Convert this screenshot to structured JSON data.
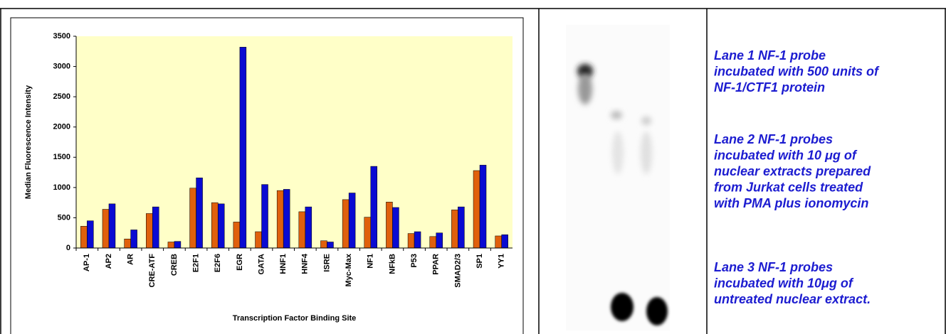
{
  "chart_data": {
    "type": "bar",
    "xlabel": "Transcription Factor Binding Site",
    "ylabel": "Median Fluorescence Intensity",
    "categories": [
      "AP-1",
      "AP2",
      "AR",
      "CRE-ATF",
      "CREB",
      "E2F1",
      "E2F6",
      "EGR",
      "GATA",
      "HNF1",
      "HNF4",
      "ISRE",
      "Myc-Max",
      "NF1",
      "NFkB",
      "P53",
      "PPAR",
      "SMAD2/3",
      "SP1",
      "YY1"
    ],
    "series": [
      {
        "color": "#e0600c",
        "values": [
          360,
          640,
          150,
          570,
          100,
          990,
          750,
          430,
          270,
          950,
          600,
          120,
          800,
          510,
          760,
          240,
          190,
          630,
          1280,
          200
        ]
      },
      {
        "color": "#0a0ad2",
        "values": [
          450,
          730,
          300,
          680,
          110,
          1160,
          730,
          3320,
          1050,
          970,
          680,
          100,
          910,
          1350,
          670,
          270,
          250,
          680,
          1370,
          220
        ]
      }
    ],
    "ylim": [
      0,
      3500
    ],
    "yticks": [
      0,
      500,
      1000,
      1500,
      2000,
      2500,
      3000,
      3500
    ],
    "plot_background": "#ffffc8"
  },
  "lanes": [
    [
      "Lane 1 NF-1 probe",
      "incubated with 500 units of",
      "NF-1/CTF1 protein"
    ],
    [
      "Lane 2 NF-1 probes",
      "incubated with 10 μg of",
      "nuclear extracts prepared",
      "from Jurkat cells treated",
      "with PMA plus ionomycin"
    ],
    [
      "Lane 3 NF-1 probes",
      "incubated with 10μg of",
      "untreated nuclear extract."
    ]
  ]
}
